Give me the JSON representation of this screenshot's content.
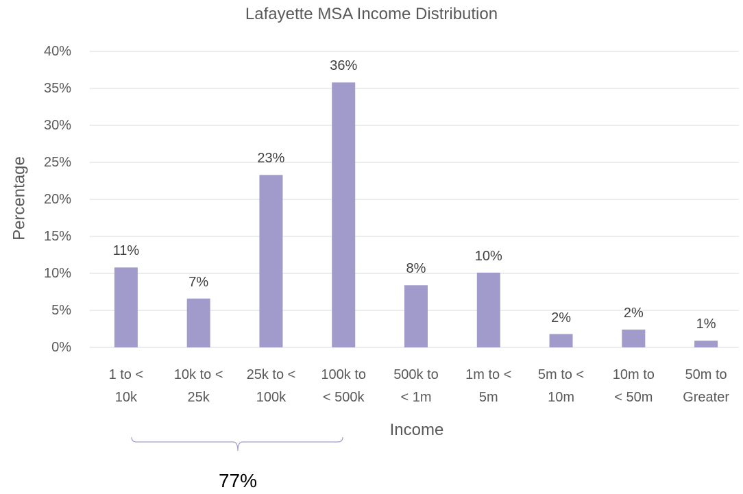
{
  "chart_data": {
    "type": "bar",
    "title": "Lafayette MSA Income Distribution",
    "x_label": "Income",
    "y_label": "Percentage",
    "categories": [
      "1 to < 10k",
      "10k to < 25k",
      "25k to < 100k",
      "100k to < 500k",
      "500k to < 1m",
      "1m to < 5m",
      "5m to < 10m",
      "10m to < 50m",
      "50m to Greater"
    ],
    "values": [
      10.8,
      6.6,
      23.3,
      35.8,
      8.4,
      10.1,
      1.8,
      2.4,
      0.9
    ],
    "value_labels": [
      "11%",
      "7%",
      "23%",
      "36%",
      "8%",
      "10%",
      "2%",
      "2%",
      "1%"
    ],
    "color": "#a09bcb",
    "ylim": [
      0,
      40
    ],
    "yticks": [
      {
        "value": 0,
        "label": "0%"
      },
      {
        "value": 5,
        "label": "5%"
      },
      {
        "value": 10,
        "label": "10%"
      },
      {
        "value": 15,
        "label": "15%"
      },
      {
        "value": 20,
        "label": "20%"
      },
      {
        "value": 25,
        "label": "25%"
      },
      {
        "value": 30,
        "label": "30%"
      },
      {
        "value": 35,
        "label": "35%"
      },
      {
        "value": 40,
        "label": "40%"
      }
    ],
    "grid": true,
    "annotation": "77%"
  }
}
